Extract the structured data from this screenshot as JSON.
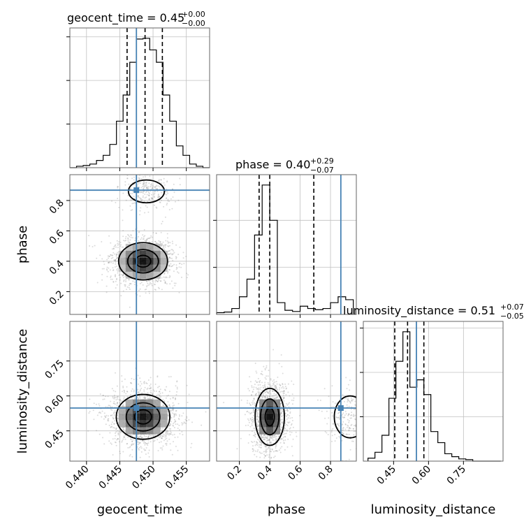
{
  "chart_data": {
    "type": "corner",
    "parameters": [
      "geocent_time",
      "phase",
      "luminosity_distance"
    ],
    "colors": {
      "truth": "#4682b4",
      "hist": "#000000",
      "grid": "#c0c0c0",
      "quantile": "#000000"
    },
    "grid": true,
    "truths": {
      "geocent_time": 0.4475,
      "phase": 0.868,
      "luminosity_distance": 0.548
    },
    "ranges": {
      "geocent_time": [
        0.4375,
        0.4585
      ],
      "phase": [
        0.05,
        0.97
      ],
      "luminosity_distance": [
        0.32,
        0.92
      ]
    },
    "ticks": {
      "geocent_time": {
        "values": [
          0.44,
          0.445,
          0.45,
          0.455
        ],
        "labels": [
          "0.440",
          "0.445",
          "0.450",
          "0.455"
        ]
      },
      "phase": {
        "values": [
          0.2,
          0.4,
          0.6,
          0.8
        ],
        "labels": [
          "0.2",
          "0.4",
          "0.6",
          "0.8"
        ]
      },
      "luminosity_distance": {
        "values": [
          0.45,
          0.6,
          0.75
        ],
        "labels": [
          "0.45",
          "0.60",
          "0.75"
        ]
      }
    },
    "titles": {
      "geocent_time": {
        "text": "geocent_time = 0.45",
        "sup": "+0.00",
        "sub": "−0.00"
      },
      "phase": {
        "text": "phase = 0.40",
        "sup": "+0.29",
        "sub": "−0.07"
      },
      "luminosity_distance": {
        "text": "luminosity_distance = 0.51",
        "sup": "+0.07",
        "sub": "−0.05"
      }
    },
    "quantiles": {
      "geocent_time": [
        0.4461,
        0.4488,
        0.4514
      ],
      "phase": [
        0.33,
        0.4,
        0.69
      ],
      "luminosity_distance": [
        0.455,
        0.51,
        0.58
      ]
    },
    "histograms": {
      "geocent_time": {
        "edges": [
          0.4375,
          0.4385,
          0.4395,
          0.4405,
          0.4415,
          0.4425,
          0.4435,
          0.4445,
          0.4455,
          0.4465,
          0.4475,
          0.4485,
          0.4495,
          0.4505,
          0.4515,
          0.4525,
          0.4535,
          0.4545,
          0.4555,
          0.4565,
          0.4575,
          0.4585
        ],
        "counts": [
          0,
          2,
          3,
          5,
          10,
          17,
          32,
          64,
          100,
          145,
          177,
          178,
          162,
          145,
          100,
          64,
          30,
          17,
          5,
          2,
          0
        ]
      },
      "phase": {
        "edges": [
          0.05,
          0.1,
          0.15,
          0.2,
          0.25,
          0.3,
          0.35,
          0.4,
          0.45,
          0.5,
          0.55,
          0.6,
          0.65,
          0.7,
          0.75,
          0.8,
          0.85,
          0.9,
          0.95
        ],
        "counts": [
          3,
          4,
          10,
          30,
          60,
          135,
          220,
          160,
          20,
          7,
          5,
          14,
          10,
          8,
          10,
          20,
          30,
          25
        ]
      },
      "luminosity_distance": {
        "edges": [
          0.34,
          0.37,
          0.4,
          0.43,
          0.46,
          0.49,
          0.52,
          0.55,
          0.58,
          0.61,
          0.64,
          0.67,
          0.7,
          0.73,
          0.76,
          0.79,
          0.82,
          0.85,
          0.88,
          0.91
        ],
        "counts": [
          4,
          12,
          35,
          85,
          135,
          175,
          100,
          110,
          90,
          40,
          25,
          10,
          6,
          3,
          2,
          0,
          0,
          0,
          0
        ]
      }
    },
    "joint": {
      "phase_vs_geocent_time": {
        "modes": [
          {
            "cx": 0.4485,
            "cy": 0.4,
            "sx": 0.0021,
            "sy": 0.07,
            "weight": 0.85
          },
          {
            "cx": 0.449,
            "cy": 0.86,
            "sx": 0.0018,
            "sy": 0.05,
            "weight": 0.15
          }
        ]
      },
      "luminosity_distance_vs_geocent_time": {
        "modes": [
          {
            "cx": 0.4485,
            "cy": 0.51,
            "sx": 0.0023,
            "sy": 0.055,
            "weight": 1.0
          }
        ]
      },
      "luminosity_distance_vs_phase": {
        "modes": [
          {
            "cx": 0.4,
            "cy": 0.51,
            "sx": 0.055,
            "sy": 0.07,
            "weight": 0.8
          },
          {
            "cx": 0.93,
            "cy": 0.51,
            "sx": 0.07,
            "sy": 0.06,
            "weight": 0.2
          }
        ]
      }
    }
  }
}
